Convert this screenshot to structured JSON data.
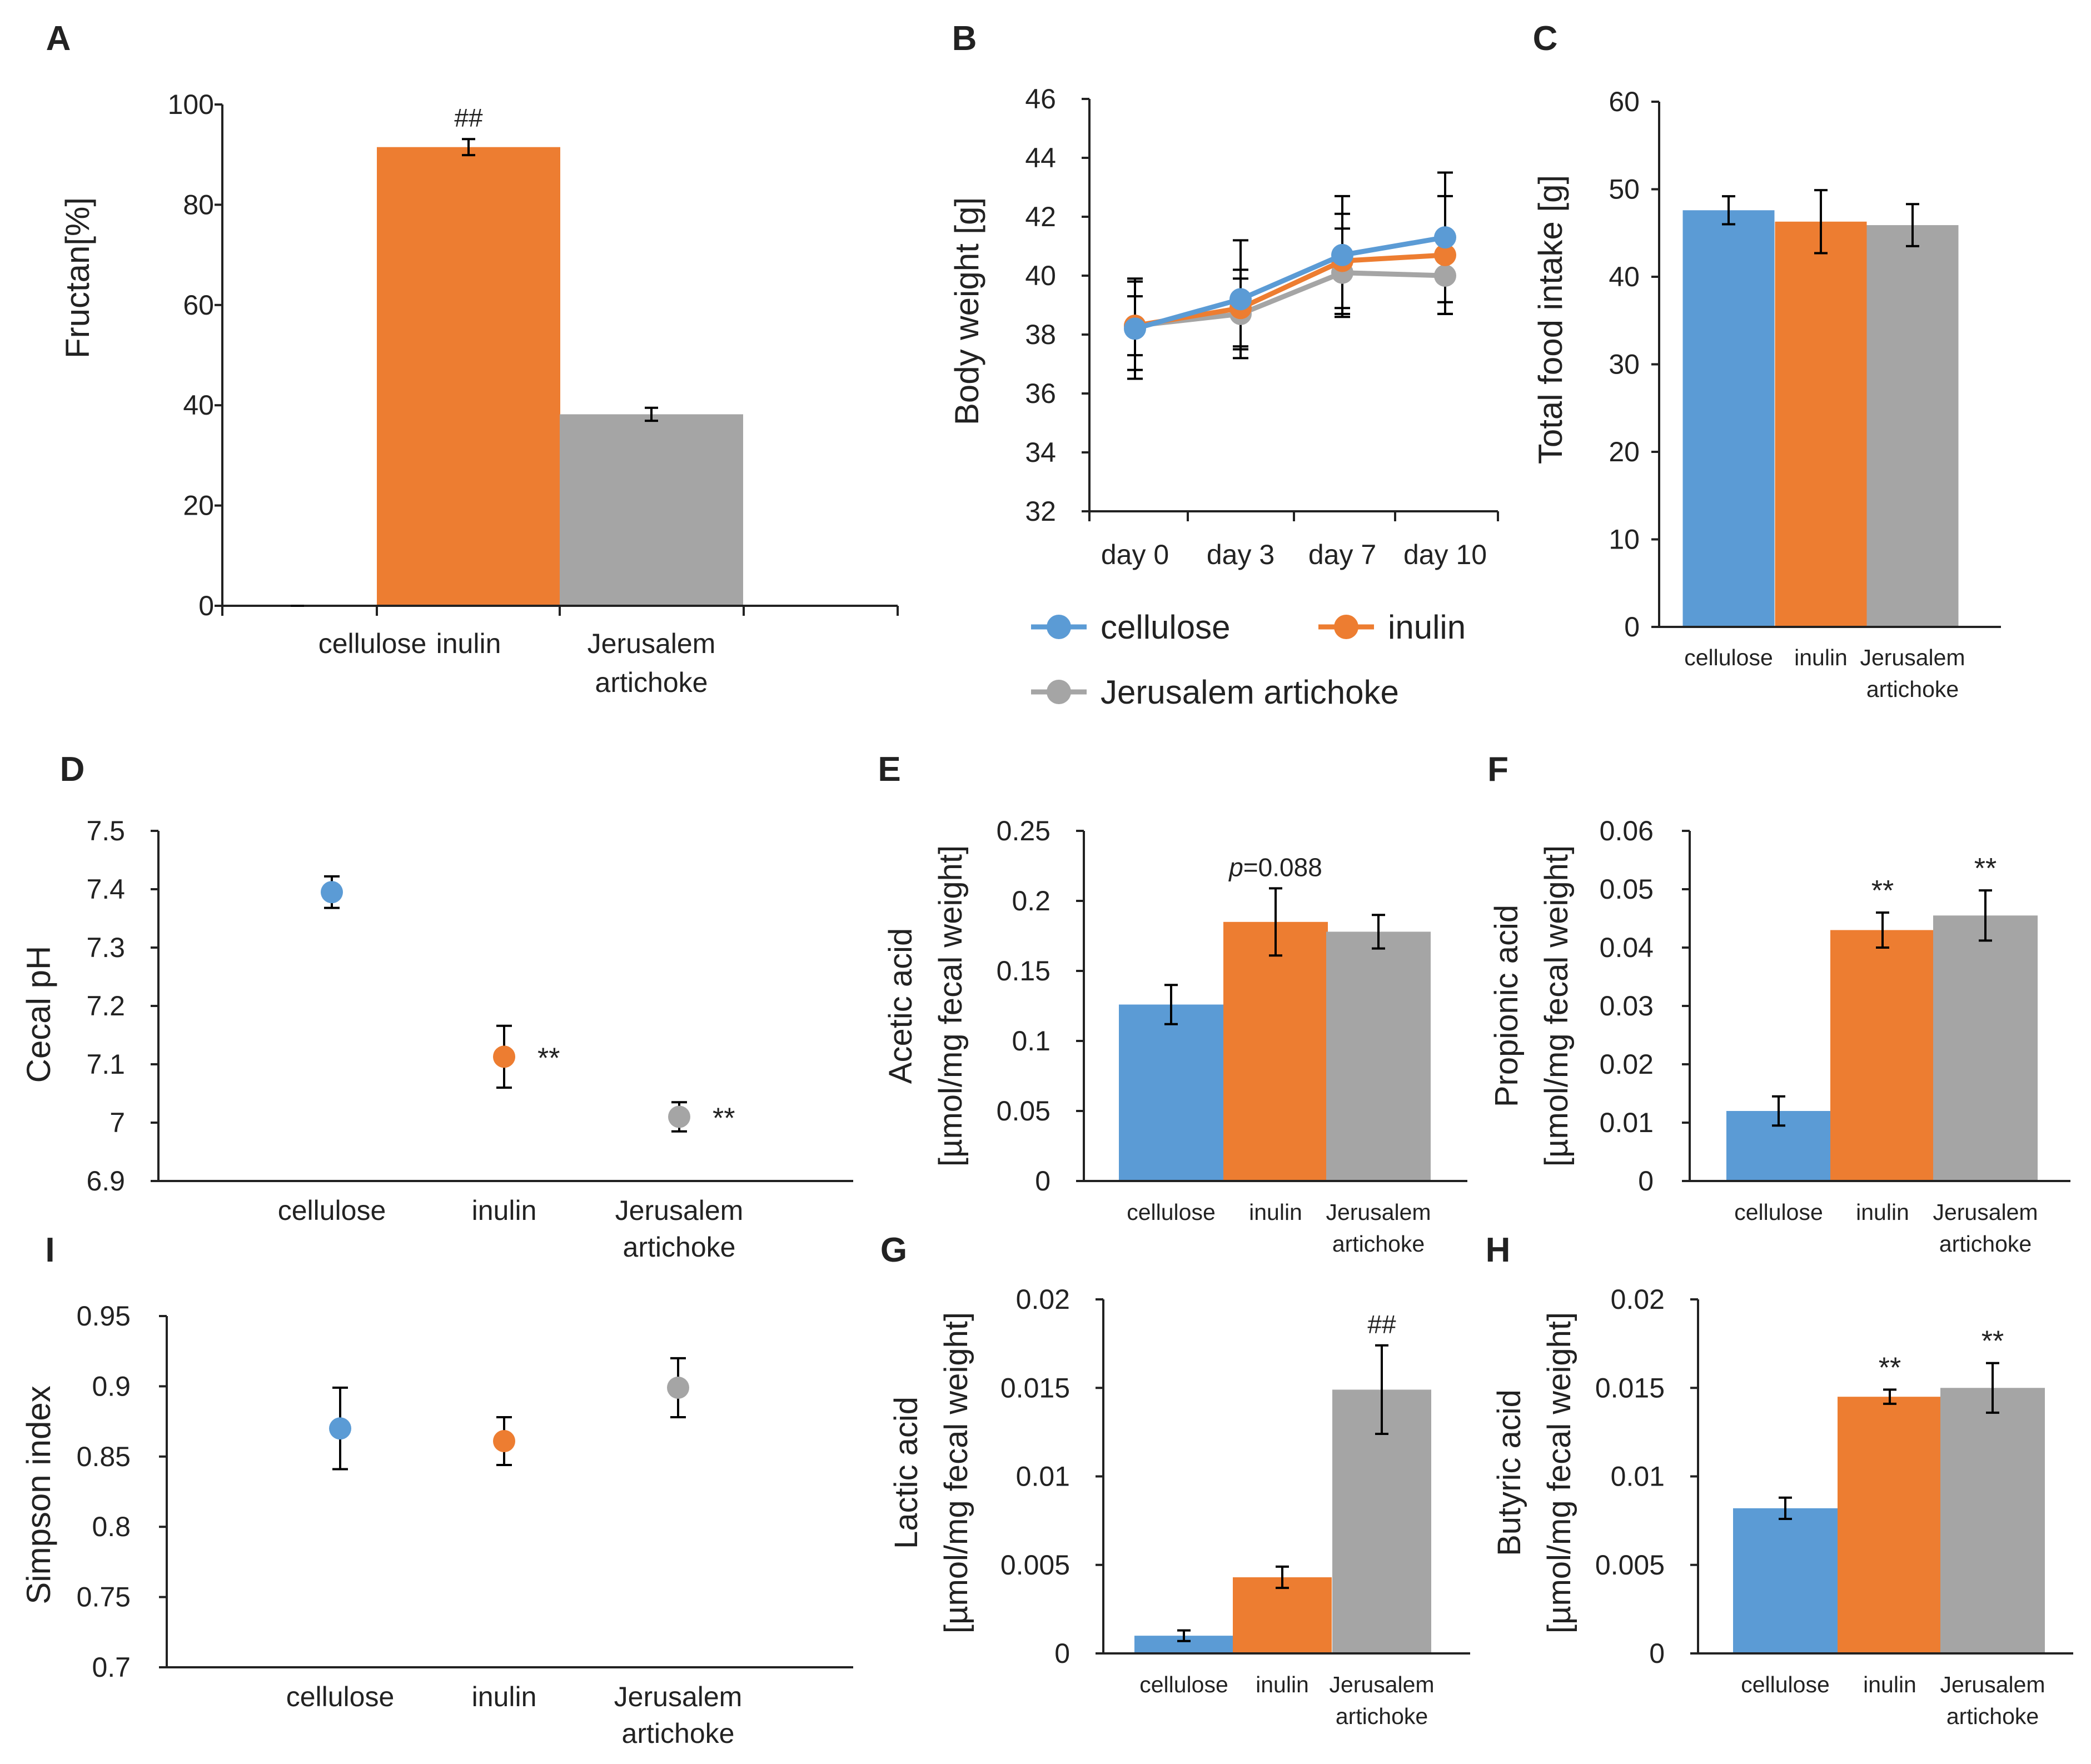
{
  "colors": {
    "cellulose": "#5b9bd5",
    "inulin": "#ed7d31",
    "jerusalem": "#a5a5a5",
    "axis": "#222222"
  },
  "legend": {
    "items": [
      "cellulose",
      "inulin",
      "Jerusalem artichoke"
    ]
  },
  "chart_data": [
    {
      "id": "A",
      "letter": "A",
      "type": "bar",
      "ylabel": "Fructan[%]",
      "categories": [
        [
          "cellulose"
        ],
        [
          "inulin"
        ],
        [
          "Jerusalem",
          "artichoke"
        ]
      ],
      "values": [
        0,
        91.5,
        38.2
      ],
      "errors": [
        0,
        1.6,
        1.3
      ],
      "ylim": [
        0,
        100
      ],
      "yticks": [
        "0",
        "20",
        "40",
        "60",
        "80",
        "100"
      ],
      "annotations": [
        "",
        "##",
        ""
      ]
    },
    {
      "id": "B",
      "letter": "B",
      "type": "line",
      "ylabel": "Body weight [g]",
      "x": [
        "day 0",
        "day 3",
        "day 7",
        "day 10"
      ],
      "ylim": [
        32,
        46
      ],
      "yticks": [
        "32",
        "34",
        "36",
        "38",
        "40",
        "42",
        "44",
        "46"
      ],
      "series": [
        {
          "name": "cellulose",
          "values": [
            38.2,
            39.2,
            40.7,
            41.3
          ],
          "errors": [
            1.7,
            2.0,
            2.0,
            2.2
          ]
        },
        {
          "name": "inulin",
          "values": [
            38.3,
            38.9,
            40.5,
            40.7
          ],
          "errors": [
            1.5,
            1.3,
            1.6,
            2.0
          ]
        },
        {
          "name": "Jerusalem artichoke",
          "values": [
            38.3,
            38.7,
            40.1,
            40.0
          ],
          "errors": [
            1.0,
            1.2,
            1.5,
            1.3
          ]
        }
      ],
      "legend": [
        "cellulose",
        "inulin",
        "Jerusalem artichoke"
      ]
    },
    {
      "id": "C",
      "letter": "C",
      "type": "bar",
      "ylabel": "Total food intake [g]",
      "categories": [
        [
          "cellulose"
        ],
        [
          "inulin"
        ],
        [
          "Jerusalem",
          "artichoke"
        ]
      ],
      "values": [
        47.6,
        46.3,
        45.9
      ],
      "errors": [
        1.6,
        3.6,
        2.4
      ],
      "ylim": [
        0,
        60
      ],
      "yticks": [
        "0",
        "10",
        "20",
        "30",
        "40",
        "50",
        "60"
      ],
      "annotations": [
        "",
        "",
        ""
      ]
    },
    {
      "id": "D",
      "letter": "D",
      "type": "scatter",
      "ylabel": "Cecal pH",
      "categories": [
        [
          "cellulose"
        ],
        [
          "inulin"
        ],
        [
          "Jerusalem",
          "artichoke"
        ]
      ],
      "values": [
        7.395,
        7.113,
        7.01
      ],
      "errors": [
        0.027,
        0.053,
        0.025
      ],
      "ylim": [
        6.9,
        7.5
      ],
      "yticks": [
        "6.9",
        "7",
        "7.1",
        "7.2",
        "7.3",
        "7.4",
        "7.5"
      ],
      "annotations": [
        "",
        "**",
        "**"
      ]
    },
    {
      "id": "E",
      "letter": "E",
      "type": "bar",
      "ylabel": [
        "Acetic acid",
        "[µmol/mg fecal weight]"
      ],
      "categories": [
        [
          "cellulose"
        ],
        [
          "inulin"
        ],
        [
          "Jerusalem",
          "artichoke"
        ]
      ],
      "values": [
        0.126,
        0.185,
        0.178
      ],
      "errors": [
        0.014,
        0.024,
        0.012
      ],
      "ylim": [
        0,
        0.25
      ],
      "yticks": [
        "0",
        "0.05",
        "0.1",
        "0.15",
        "0.2",
        "0.25"
      ],
      "annotations": [
        "",
        "",
        ""
      ],
      "pvalue": {
        "italic": "p",
        "rest": "=0.088"
      }
    },
    {
      "id": "F",
      "letter": "F",
      "type": "bar",
      "ylabel": [
        "Propionic acid",
        "[µmol/mg fecal weight]"
      ],
      "categories": [
        [
          "cellulose"
        ],
        [
          "inulin"
        ],
        [
          "Jerusalem",
          "artichoke"
        ]
      ],
      "values": [
        0.012,
        0.043,
        0.0455
      ],
      "errors": [
        0.0025,
        0.003,
        0.0043
      ],
      "ylim": [
        0,
        0.06
      ],
      "yticks": [
        "0",
        "0.01",
        "0.02",
        "0.03",
        "0.04",
        "0.05",
        "0.06"
      ],
      "annotations": [
        "",
        "**",
        "**"
      ]
    },
    {
      "id": "G",
      "letter": "G",
      "type": "bar",
      "ylabel": [
        "Lactic acid",
        "[µmol/mg fecal weight]"
      ],
      "categories": [
        [
          "cellulose"
        ],
        [
          "inulin"
        ],
        [
          "Jerusalem",
          "artichoke"
        ]
      ],
      "values": [
        0.001,
        0.0043,
        0.0149
      ],
      "errors": [
        0.0003,
        0.0006,
        0.0025
      ],
      "ylim": [
        0,
        0.02
      ],
      "yticks": [
        "0",
        "0.005",
        "0.01",
        "0.015",
        "0.02"
      ],
      "annotations": [
        "",
        "",
        "##"
      ]
    },
    {
      "id": "H",
      "letter": "H",
      "type": "bar",
      "ylabel": [
        "Butyric acid",
        "[µmol/mg fecal weight]"
      ],
      "categories": [
        [
          "cellulose"
        ],
        [
          "inulin"
        ],
        [
          "Jerusalem",
          "artichoke"
        ]
      ],
      "values": [
        0.0082,
        0.0145,
        0.015
      ],
      "errors": [
        0.0006,
        0.0004,
        0.0014
      ],
      "ylim": [
        0,
        0.02
      ],
      "yticks": [
        "0",
        "0.005",
        "0.01",
        "0.015",
        "0.02"
      ],
      "annotations": [
        "",
        "**",
        "**"
      ]
    },
    {
      "id": "I",
      "letter": "I",
      "type": "scatter",
      "ylabel": "Simpson index",
      "categories": [
        [
          "cellulose"
        ],
        [
          "inulin"
        ],
        [
          "Jerusalem",
          "artichoke"
        ]
      ],
      "values": [
        0.87,
        0.861,
        0.899
      ],
      "errors": [
        0.029,
        0.017,
        0.021
      ],
      "ylim": [
        0.7,
        0.95
      ],
      "yticks": [
        "0.7",
        "0.75",
        "0.8",
        "0.85",
        "0.9",
        "0.95"
      ],
      "annotations": [
        "",
        "",
        ""
      ]
    }
  ]
}
